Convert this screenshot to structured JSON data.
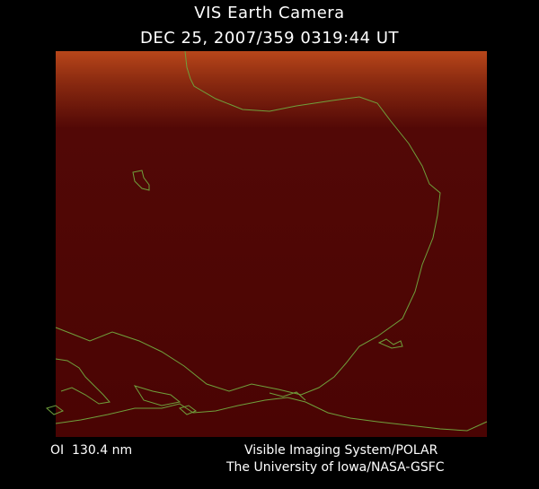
{
  "header": {
    "title": "VIS Earth Camera",
    "timestamp": "DEC 25, 2007/359 0319:44 UT"
  },
  "footer": {
    "filter": "OI  130.4 nm",
    "credit_line_1": "Visible Imaging System/POLAR",
    "credit_line_2": "The University of Iowa/NASA-GSFC"
  }
}
